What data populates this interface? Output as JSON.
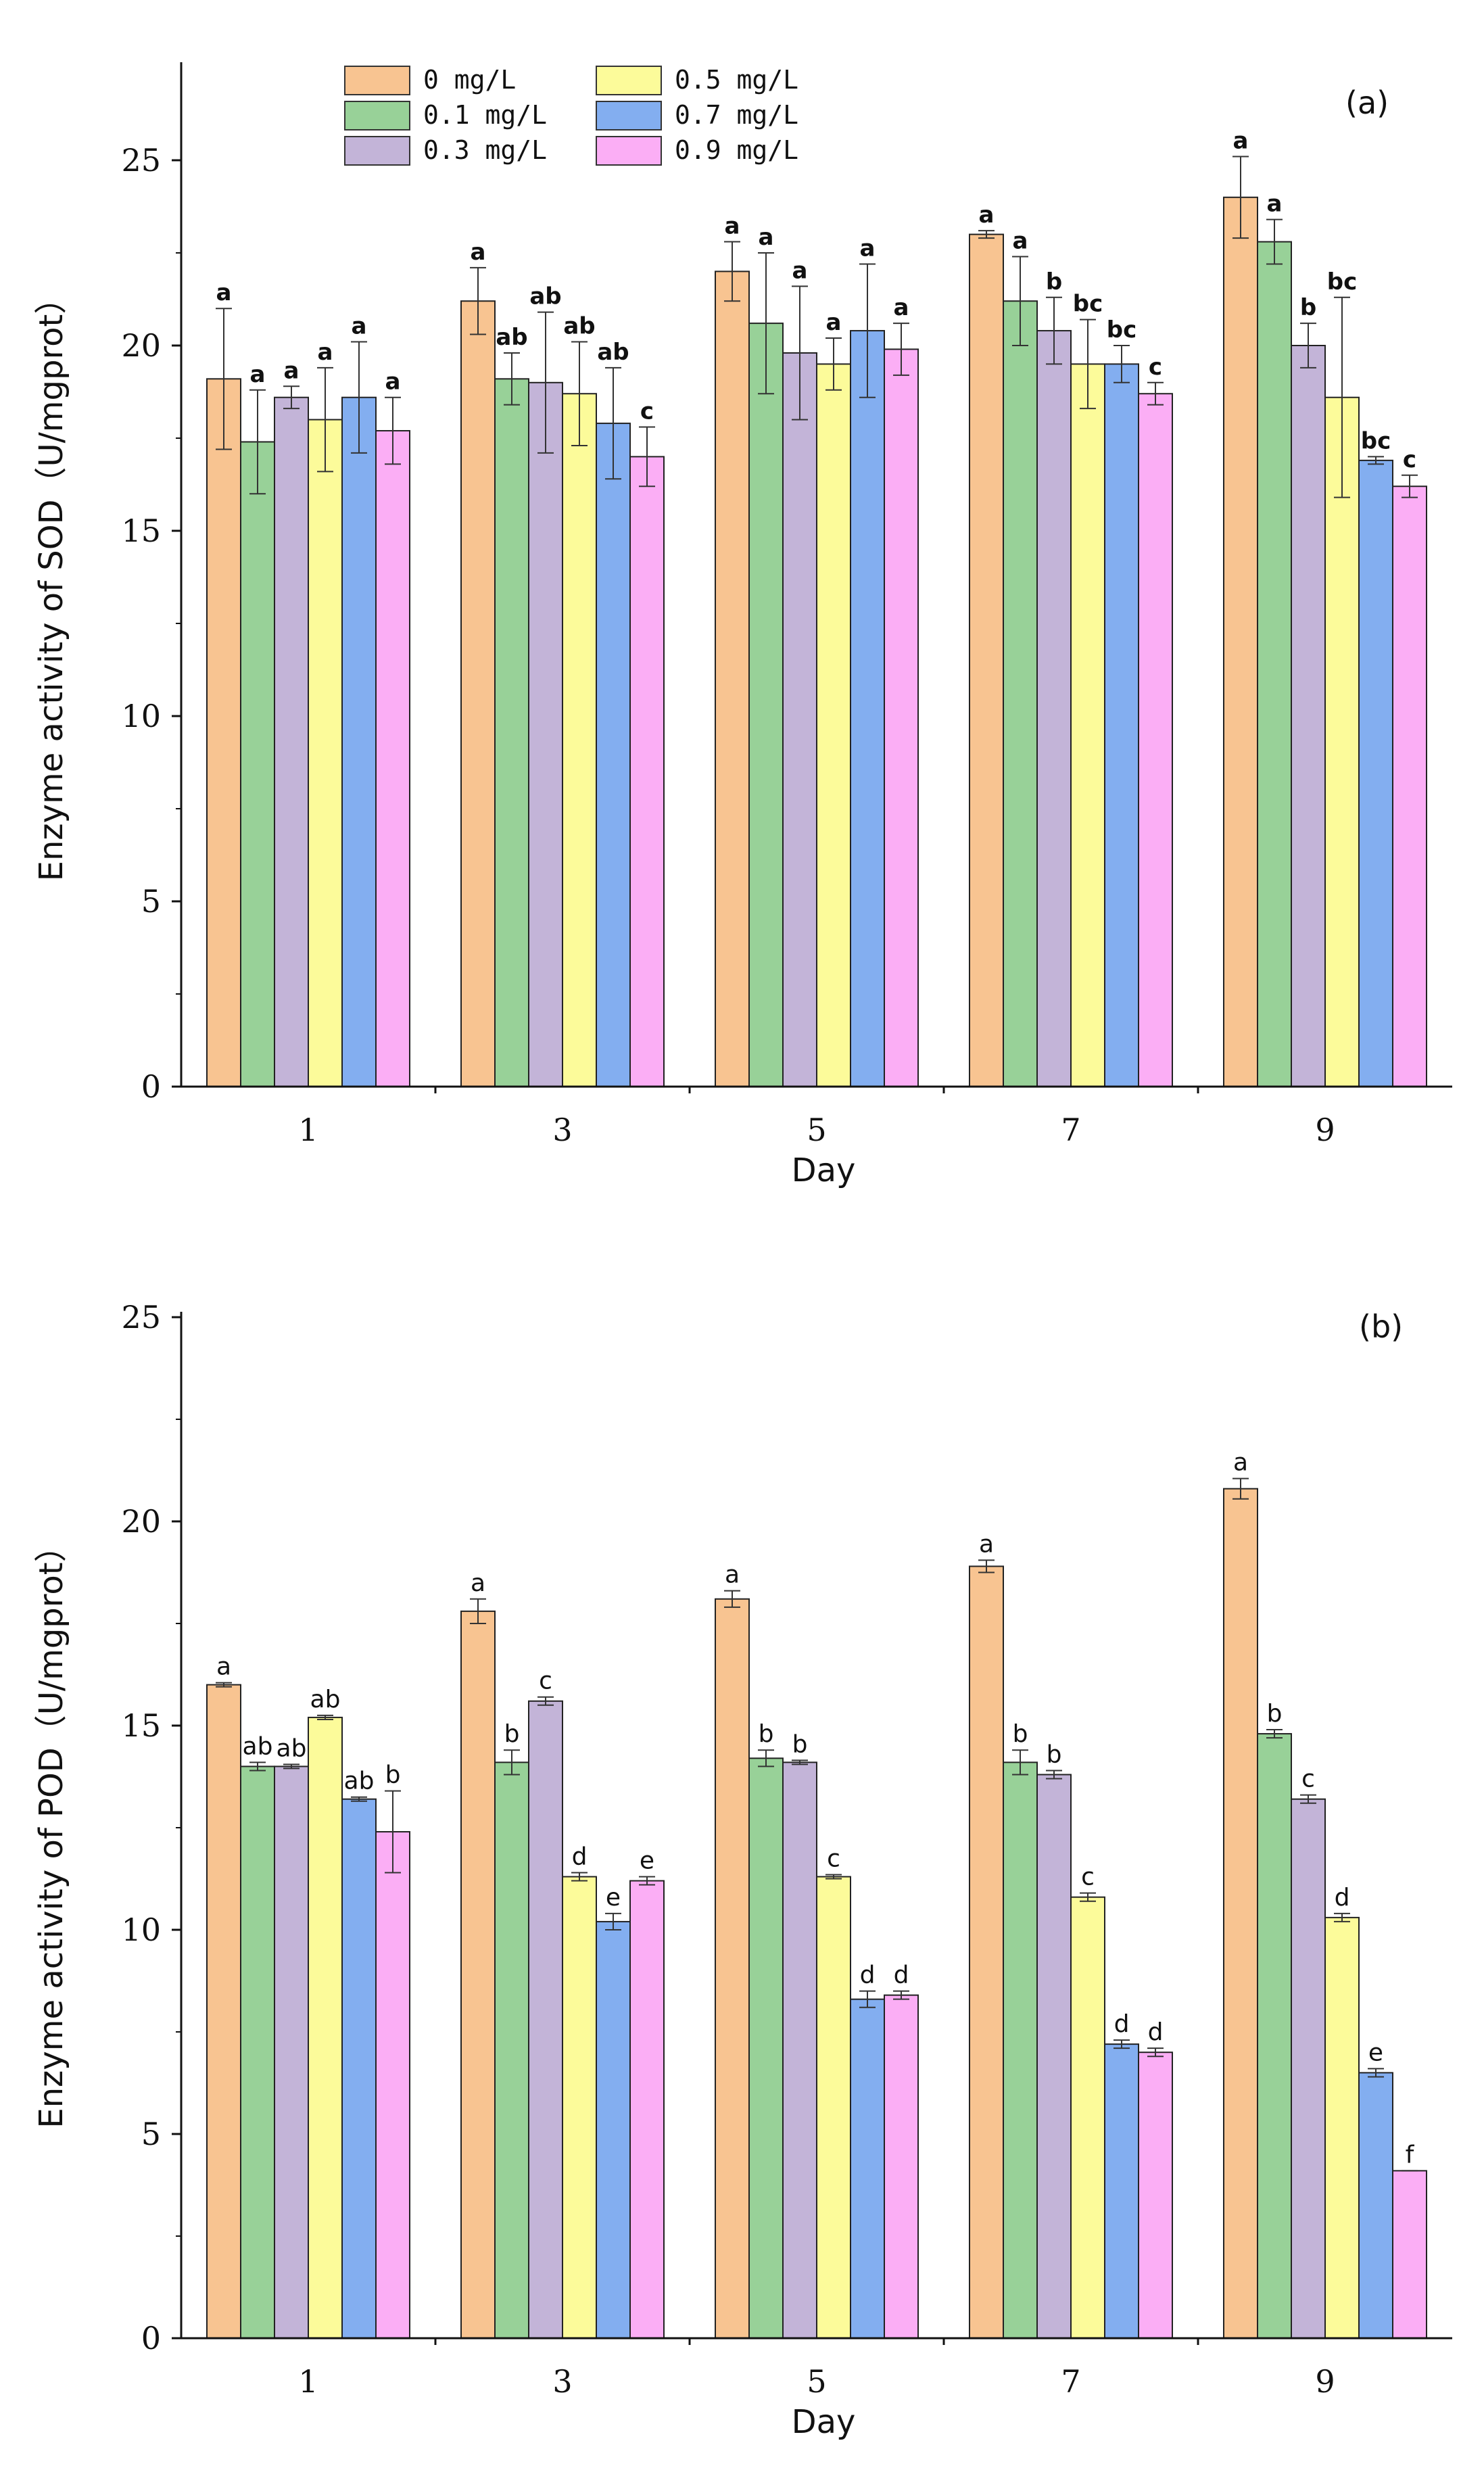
{
  "chart_data": [
    {
      "type": "bar",
      "panel": "(a)",
      "xlabel": "Day",
      "ylabel": "Enzyme activity of SOD（U/mgprot）",
      "categories": [
        "1",
        "3",
        "5",
        "7",
        "9"
      ],
      "ylim": [
        0,
        27.5
      ],
      "yticks": [
        0,
        5,
        10,
        15,
        20,
        25
      ],
      "legend": {
        "placement": "top-left",
        "entries": [
          "0 mg/L",
          "0.1 mg/L",
          "0.3 mg/L",
          "0.5 mg/L",
          "0.7 mg/L",
          "0.9 mg/L"
        ]
      },
      "series": [
        {
          "name": "0 mg/L",
          "color": "#F8C491",
          "values": [
            19.1,
            21.2,
            22.0,
            23.0,
            24.0
          ],
          "errors": [
            1.9,
            0.9,
            0.8,
            0.1,
            1.1
          ],
          "sig": [
            "a",
            "a",
            "a",
            "a",
            "a"
          ]
        },
        {
          "name": "0.1 mg/L",
          "color": "#98D198",
          "values": [
            17.4,
            19.1,
            20.6,
            21.2,
            22.8
          ],
          "errors": [
            1.4,
            0.7,
            1.9,
            1.2,
            0.6
          ],
          "sig": [
            "a",
            "ab",
            "a",
            "a",
            "a"
          ]
        },
        {
          "name": "0.3 mg/L",
          "color": "#C3B4D8",
          "values": [
            18.6,
            19.0,
            19.8,
            20.4,
            20.0
          ],
          "errors": [
            0.3,
            1.9,
            1.8,
            0.9,
            0.6
          ],
          "sig": [
            "a",
            "ab",
            "a",
            "b",
            "b"
          ]
        },
        {
          "name": "0.5 mg/L",
          "color": "#FCFB9A",
          "values": [
            18.0,
            18.7,
            19.5,
            19.5,
            18.6
          ],
          "errors": [
            1.4,
            1.4,
            0.7,
            1.2,
            2.7
          ],
          "sig": [
            "a",
            "ab",
            "a",
            "bc",
            "bc"
          ]
        },
        {
          "name": "0.7 mg/L",
          "color": "#83AEF0",
          "values": [
            18.6,
            17.9,
            20.4,
            19.5,
            16.9
          ],
          "errors": [
            1.5,
            1.5,
            1.8,
            0.5,
            0.1
          ],
          "sig": [
            "a",
            "ab",
            "a",
            "bc",
            "bc"
          ]
        },
        {
          "name": "0.9 mg/L",
          "color": "#FBAEF5",
          "values": [
            17.7,
            17.0,
            19.9,
            18.7,
            16.2
          ],
          "errors": [
            0.9,
            0.8,
            0.7,
            0.3,
            0.3
          ],
          "sig": [
            "a",
            "c",
            "a",
            "c",
            "c"
          ]
        }
      ]
    },
    {
      "type": "bar",
      "panel": "(b)",
      "xlabel": "Day",
      "ylabel": "Enzyme activity of POD（U/mgprot）",
      "categories": [
        "1",
        "3",
        "5",
        "7",
        "9"
      ],
      "ylim": [
        0,
        25
      ],
      "yticks": [
        0,
        5,
        10,
        15,
        20,
        25
      ],
      "series": [
        {
          "name": "0 mg/L",
          "color": "#F8C491",
          "values": [
            16.0,
            17.8,
            18.1,
            18.9,
            20.8
          ],
          "errors": [
            0.05,
            0.3,
            0.2,
            0.15,
            0.25
          ],
          "sig": [
            "a",
            "a",
            "a",
            "a",
            "a"
          ]
        },
        {
          "name": "0.1 mg/L",
          "color": "#98D198",
          "values": [
            14.0,
            14.1,
            14.2,
            14.1,
            14.8
          ],
          "errors": [
            0.1,
            0.3,
            0.2,
            0.3,
            0.1
          ],
          "sig": [
            "ab",
            "b",
            "b",
            "b",
            "b"
          ]
        },
        {
          "name": "0.3 mg/L",
          "color": "#C3B4D8",
          "values": [
            14.0,
            15.6,
            14.1,
            13.8,
            13.2
          ],
          "errors": [
            0.05,
            0.1,
            0.05,
            0.1,
            0.1
          ],
          "sig": [
            "ab",
            "c",
            "b",
            "b",
            "c"
          ]
        },
        {
          "name": "0.5 mg/L",
          "color": "#FCFB9A",
          "values": [
            15.2,
            11.3,
            11.3,
            10.8,
            10.3
          ],
          "errors": [
            0.05,
            0.1,
            0.05,
            0.1,
            0.1
          ],
          "sig": [
            "ab",
            "d",
            "c",
            "c",
            "d"
          ]
        },
        {
          "name": "0.7 mg/L",
          "color": "#83AEF0",
          "values": [
            13.2,
            10.2,
            8.3,
            7.2,
            6.5
          ],
          "errors": [
            0.05,
            0.2,
            0.2,
            0.1,
            0.1
          ],
          "sig": [
            "ab",
            "e",
            "d",
            "d",
            "e"
          ]
        },
        {
          "name": "0.9 mg/L",
          "color": "#FBAEF5",
          "values": [
            12.4,
            11.2,
            8.4,
            7.0,
            4.1
          ],
          "errors": [
            1.0,
            0.1,
            0.1,
            0.1,
            0.0
          ],
          "sig": [
            "b",
            "e",
            "d",
            "d",
            "f"
          ]
        }
      ]
    }
  ]
}
